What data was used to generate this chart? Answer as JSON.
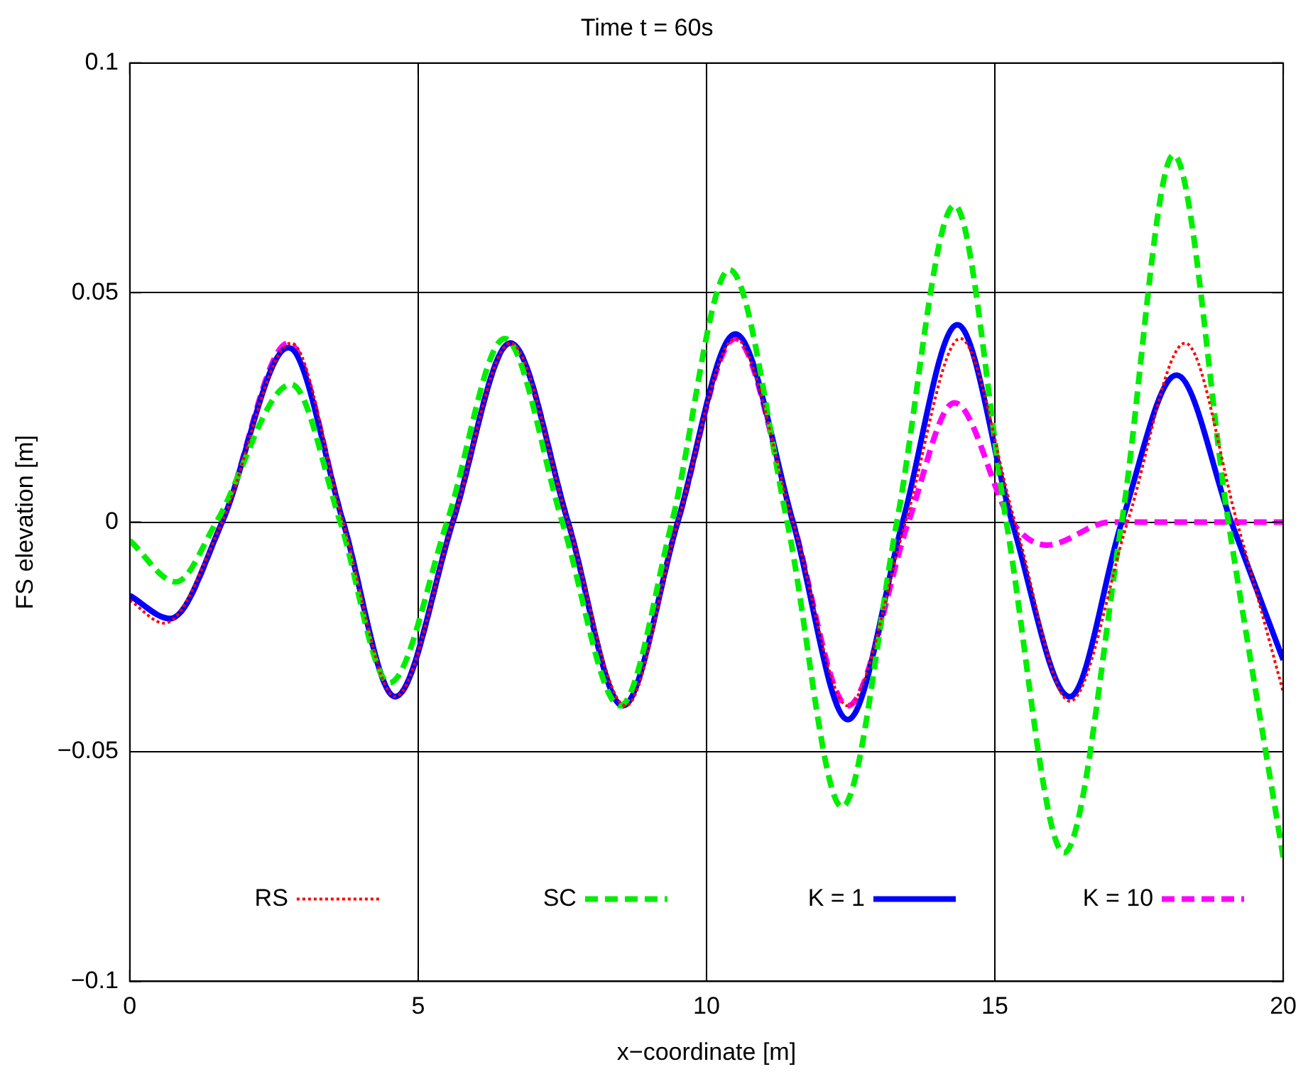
{
  "chart_data": {
    "type": "line",
    "title": "Time t = 60s",
    "xlabel": "x−coordinate [m]",
    "ylabel": "FS elevation [m]",
    "xlim": [
      0,
      20
    ],
    "xticks": [
      0,
      5,
      10,
      15,
      20
    ],
    "ylim": [
      -0.1,
      0.1
    ],
    "yticks": [
      {
        "value": -0.1,
        "label": "−0.1"
      },
      {
        "value": -0.05,
        "label": "−0.05"
      },
      0,
      0.05,
      0.1
    ],
    "grid": true,
    "legend": "bottom",
    "marker": "none",
    "series": [
      {
        "name": "RS",
        "color": "#ff0000",
        "line_style": "dotted",
        "x": [
          0,
          0.6,
          1.6,
          2.8,
          3.7,
          4.6,
          5.6,
          6.6,
          7.6,
          8.6,
          9.5,
          10.5,
          11.5,
          12.45,
          13.45,
          14.4,
          15.35,
          16.3,
          17.3,
          18.3,
          19.2,
          20
        ],
        "values": [
          -0.017,
          -0.022,
          0,
          0.039,
          0,
          -0.038,
          0,
          0.039,
          0,
          -0.04,
          0,
          0.04,
          0,
          -0.04,
          0,
          0.04,
          0,
          -0.039,
          0,
          0.039,
          0,
          -0.037
        ]
      },
      {
        "name": "SC",
        "color": "#00ee00",
        "line_style": "dashed",
        "x": [
          0,
          0.8,
          1.5,
          2.8,
          3.65,
          4.5,
          5.5,
          6.5,
          7.5,
          8.5,
          9.4,
          10.4,
          11.4,
          12.35,
          13.3,
          14.3,
          15.2,
          16.2,
          17.2,
          18.1,
          19.05,
          20
        ],
        "values": [
          -0.004,
          -0.013,
          0,
          0.03,
          0,
          -0.035,
          0,
          0.04,
          0,
          -0.04,
          0,
          0.055,
          0,
          -0.062,
          0,
          0.069,
          0,
          -0.072,
          0,
          0.08,
          0,
          -0.073
        ]
      },
      {
        "name": "K = 1",
        "color": "#0000ff",
        "line_style": "solid",
        "x": [
          0,
          0.7,
          1.6,
          2.75,
          3.7,
          4.6,
          5.6,
          6.6,
          7.6,
          8.55,
          9.5,
          10.5,
          11.5,
          12.45,
          13.4,
          14.35,
          15.3,
          16.3,
          17.2,
          18.15,
          19.1,
          20
        ],
        "values": [
          -0.016,
          -0.021,
          0,
          0.038,
          0,
          -0.038,
          0,
          0.039,
          0,
          -0.04,
          0,
          0.041,
          0,
          -0.043,
          0,
          0.043,
          0,
          -0.038,
          0,
          0.032,
          0,
          -0.03
        ]
      },
      {
        "name": "K = 10",
        "color": "#ff00ff",
        "line_style": "dashed",
        "x": [
          0,
          0.7,
          1.6,
          2.75,
          3.7,
          4.6,
          5.6,
          6.6,
          7.6,
          8.55,
          9.5,
          10.5,
          11.5,
          12.45,
          13.5,
          14.3,
          15.3,
          15.9,
          17.0,
          18,
          19,
          20
        ],
        "values": [
          -0.016,
          -0.021,
          0,
          0.039,
          0,
          -0.038,
          0,
          0.039,
          0,
          -0.04,
          0,
          0.04,
          0,
          -0.04,
          0,
          0.026,
          0,
          -0.005,
          0,
          0,
          0,
          0
        ]
      }
    ]
  }
}
